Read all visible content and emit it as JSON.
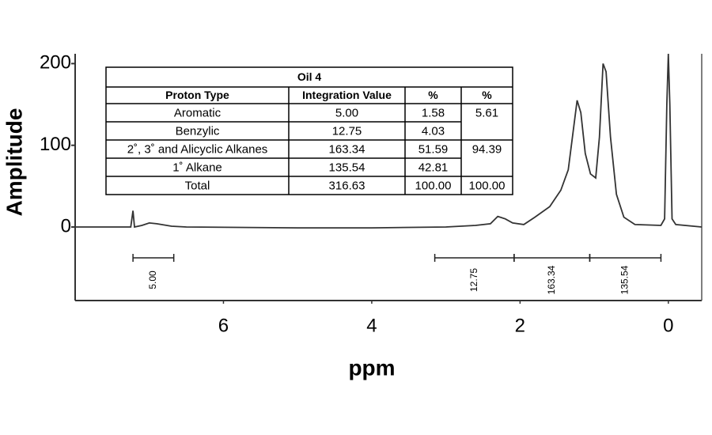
{
  "chart_data": {
    "type": "line",
    "x_label": "ppm",
    "y_label": "Amplitude",
    "xlim": [
      8.0,
      -0.45
    ],
    "ylim": [
      -90,
      212
    ],
    "xticks": [
      6,
      4,
      2,
      0
    ],
    "yticks": [
      0,
      100,
      200
    ],
    "color": "#333333",
    "x": [
      8.0,
      7.3,
      7.25,
      7.22,
      7.2,
      7.1,
      7.0,
      6.9,
      6.7,
      6.5,
      5.0,
      4.0,
      3.0,
      2.6,
      2.4,
      2.3,
      2.2,
      2.1,
      1.95,
      1.8,
      1.6,
      1.45,
      1.35,
      1.28,
      1.23,
      1.18,
      1.12,
      1.05,
      0.98,
      0.93,
      0.88,
      0.84,
      0.78,
      0.7,
      0.6,
      0.45,
      0.1,
      0.05,
      0.02,
      0.0,
      -0.02,
      -0.05,
      -0.1,
      -0.45
    ],
    "values": [
      0,
      0,
      0,
      20,
      0,
      2,
      5,
      4,
      1,
      0,
      -1,
      -1,
      0,
      2,
      4,
      13,
      10,
      5,
      3,
      12,
      25,
      45,
      70,
      120,
      155,
      140,
      90,
      65,
      60,
      110,
      200,
      190,
      110,
      40,
      12,
      3,
      2,
      10,
      150,
      212,
      150,
      10,
      3,
      0
    ],
    "integrals": {
      "ranges": [
        [
          7.22,
          6.67
        ],
        [
          3.15,
          2.08
        ],
        [
          2.08,
          1.06
        ],
        [
          1.06,
          0.1
        ]
      ],
      "labels": [
        "5.00",
        "12.75",
        "163.34",
        "135.54"
      ]
    },
    "table": {
      "title": "Oil 4",
      "header": [
        "Proton Type",
        "Integration Value",
        "%",
        "%"
      ],
      "rows": [
        [
          "Aromatic",
          "5.00",
          "1.58"
        ],
        [
          "Benzylic",
          "12.75",
          "4.03"
        ],
        [
          "2˚, 3˚ and Alicyclic Alkanes",
          "163.34",
          "51.59"
        ],
        [
          "1˚ Alkane",
          "135.54",
          "42.81"
        ],
        [
          "Total",
          "316.63",
          "100.00"
        ]
      ],
      "merged_column": [
        "5.61",
        "94.39",
        "100.00"
      ]
    }
  }
}
